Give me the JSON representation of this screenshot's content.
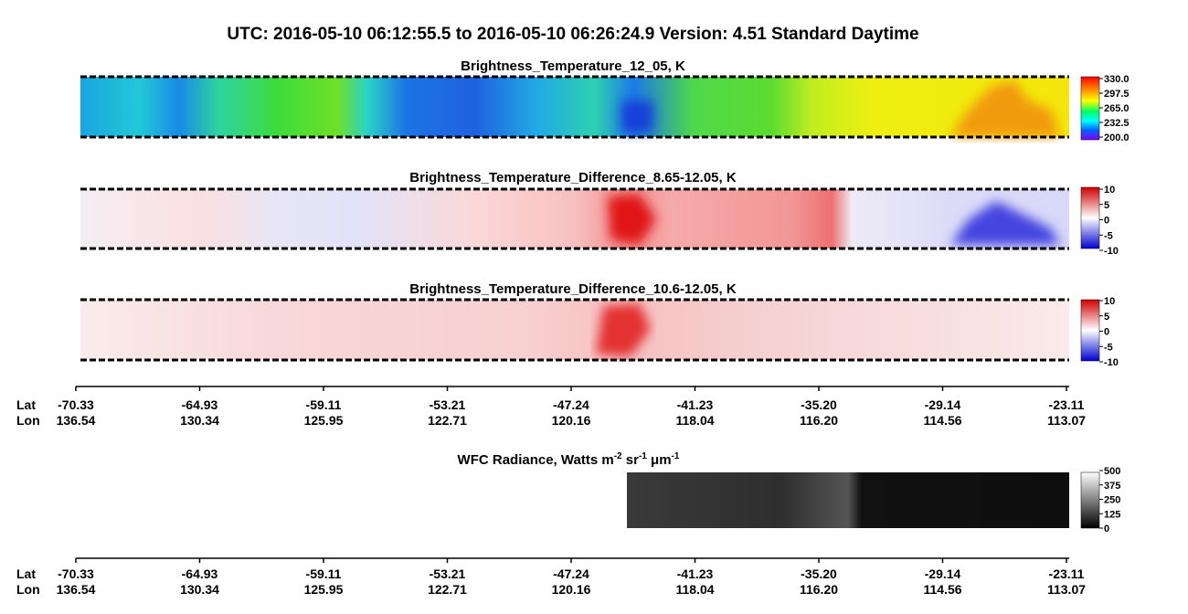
{
  "header": {
    "title": "UTC:  2016-05-10   06:12:55.5  to  2016-05-10   06:26:24.9    Version: 4.51  Standard Daytime"
  },
  "panels": [
    {
      "title": "Brightness_Temperature_12_05, K",
      "colorbar": [
        "330.0",
        "297.5",
        "265.0",
        "232.5",
        "200.0"
      ]
    },
    {
      "title": "Brightness_Temperature_Difference_8.65-12.05, K",
      "colorbar": [
        "10",
        "5",
        "0",
        "-5",
        "-10"
      ]
    },
    {
      "title": "Brightness_Temperature_Difference_10.6-12.05, K",
      "colorbar": [
        "10",
        "5",
        "0",
        "-5",
        "-10"
      ]
    },
    {
      "title": [
        "WFC Radiance, Watts m",
        "-2",
        " sr",
        "-1",
        " μm",
        "-1"
      ],
      "colorbar": [
        "500",
        "375",
        "250",
        "125",
        "0"
      ]
    }
  ],
  "axis": {
    "lat_label": "Lat",
    "lon_label": "Lon",
    "lat": [
      "-70.33",
      "-64.93",
      "-59.11",
      "-53.21",
      "-47.24",
      "-41.23",
      "-35.20",
      "-29.14",
      "-23.11"
    ],
    "lon": [
      "136.54",
      "130.34",
      "125.95",
      "122.71",
      "120.16",
      "118.04",
      "116.20",
      "114.56",
      "113.07"
    ]
  }
}
